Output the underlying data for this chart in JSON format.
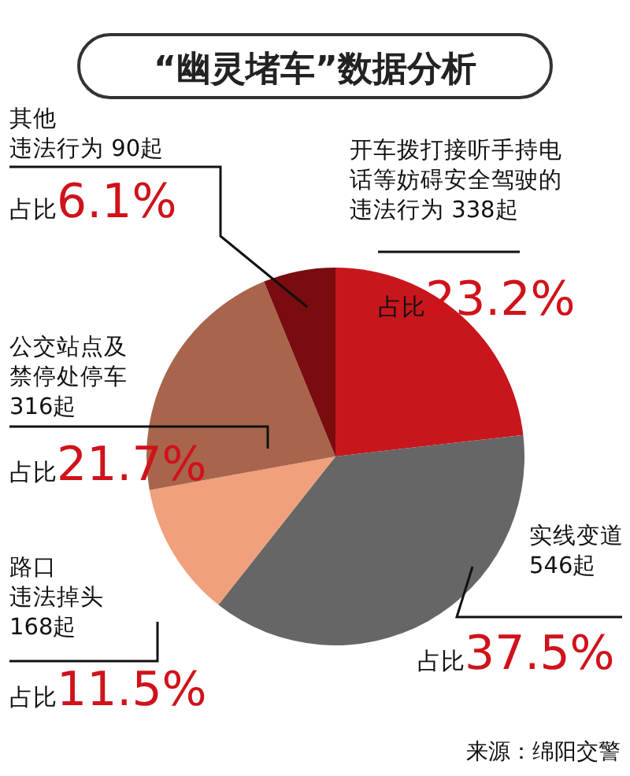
{
  "chart_data": {
    "type": "pie",
    "title": "“幽灵堵车”数据分析",
    "categories": [
      "开车拨打接听手持电话等妨碍安全驾驶的违法行为",
      "实线变道",
      "路口违法掉头",
      "公交站点及禁停处停车",
      "其他违法行为"
    ],
    "values": [
      338,
      546,
      168,
      316,
      90
    ],
    "value_labels": [
      "338起",
      "546起",
      "168起",
      "316起",
      "90起"
    ],
    "colors": [
      "#c8161d",
      "#666666",
      "#f0a07c",
      "#a8654c",
      "#7a0c10"
    ],
    "annotations": [
      "占比23.2%",
      "占比37.5%",
      "占比11.5%",
      "占比21.7%",
      "占比6.1%",
      "来源：绵阳交警"
    ]
  }
}
